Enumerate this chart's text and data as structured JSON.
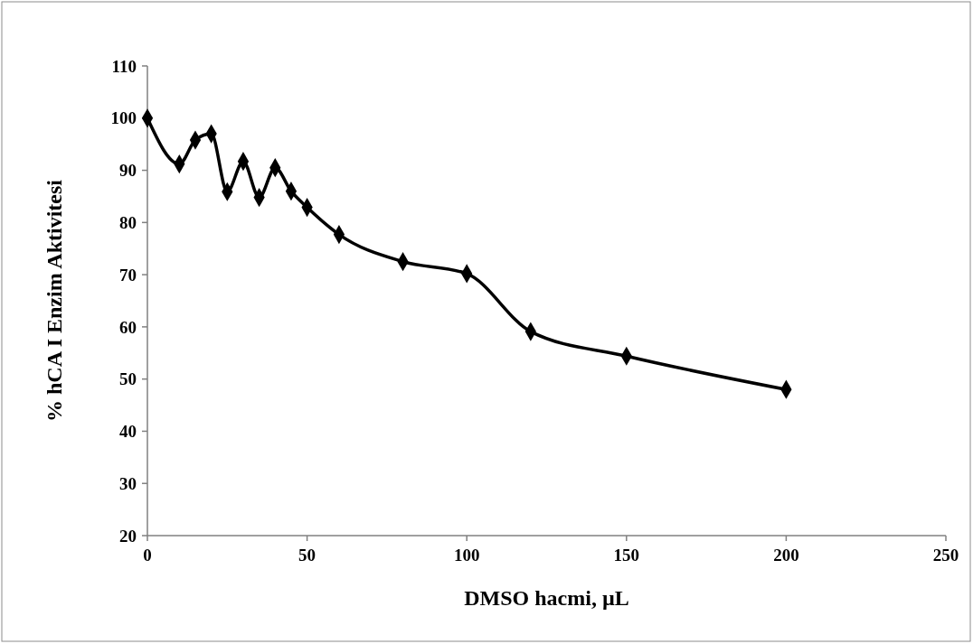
{
  "chart_data": {
    "type": "line",
    "xlabel": "DMSO hacmi, µL",
    "ylabel": "% hCA I Enzim Aktivitesi",
    "x": [
      0,
      10,
      15,
      20,
      25,
      30,
      35,
      40,
      45,
      50,
      60,
      80,
      100,
      120,
      150,
      200
    ],
    "series": [
      {
        "color": "#000000",
        "values": [
          100,
          91.2,
          95.8,
          97,
          85.9,
          91.7,
          84.8,
          90.5,
          86,
          82.9,
          77.7,
          72.5,
          70.2,
          59.1,
          54.4,
          48
        ]
      }
    ],
    "xlim": [
      0,
      250
    ],
    "xticks": [
      0,
      50,
      100,
      150,
      200,
      250
    ],
    "ylim": [
      20,
      110
    ],
    "yticks": [
      20,
      30,
      40,
      50,
      60,
      70,
      80,
      90,
      100,
      110
    ],
    "grid": false,
    "marker": "diamond",
    "line_style": "solid"
  }
}
